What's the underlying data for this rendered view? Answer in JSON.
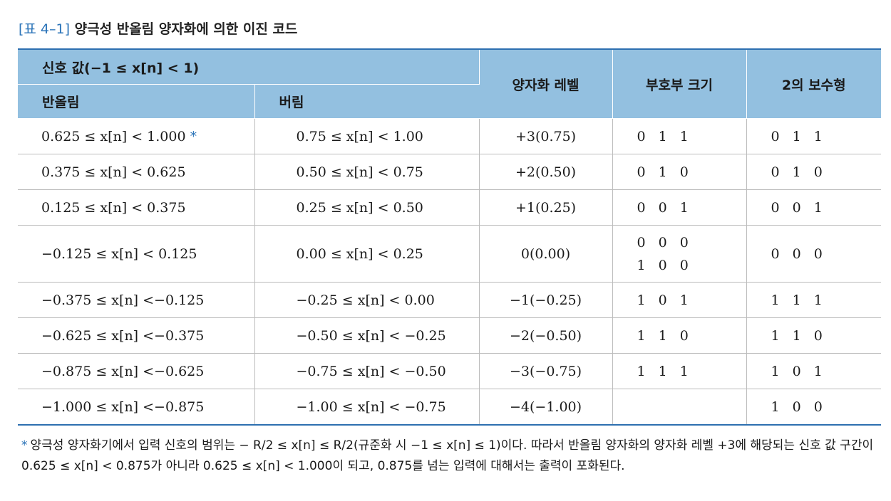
{
  "caption": {
    "tag": "[표 4–1]",
    "title": "양극성 반올림 양자화에 의한 이진 코드"
  },
  "table": {
    "header": {
      "signal_group": "신호 값(−1 ≤ x[n] < 1)",
      "rounding": "반올림",
      "truncation": "버림",
      "quant_level": "양자화 레벨",
      "sign_magnitude": "부호부 크기",
      "twos_complement": "2의 보수형"
    },
    "rows": [
      {
        "rounding": "0.625 ≤ x[n] < 1.000",
        "star": "*",
        "truncation": "0.75 ≤ x[n] < 1.00",
        "level": "+3(0.75)",
        "sign_mag": "0 1 1",
        "sign_mag2": "",
        "twos": "0 1 1"
      },
      {
        "rounding": "0.375 ≤ x[n] < 0.625",
        "star": "",
        "truncation": "0.50 ≤ x[n] < 0.75",
        "level": "+2(0.50)",
        "sign_mag": "0 1 0",
        "sign_mag2": "",
        "twos": "0 1 0"
      },
      {
        "rounding": "0.125 ≤ x[n] < 0.375",
        "star": "",
        "truncation": "0.25 ≤ x[n] < 0.50",
        "level": "+1(0.25)",
        "sign_mag": "0 0 1",
        "sign_mag2": "",
        "twos": "0 0 1"
      },
      {
        "rounding": "−0.125 ≤ x[n] < 0.125",
        "star": "",
        "truncation": "0.00 ≤ x[n] < 0.25",
        "level": "0(0.00)",
        "sign_mag": "0 0 0",
        "sign_mag2": "1 0 0",
        "twos": "0 0 0"
      },
      {
        "rounding": "−0.375 ≤ x[n] <−0.125",
        "star": "",
        "truncation": "−0.25 ≤ x[n] < 0.00",
        "level": "−1(−0.25)",
        "sign_mag": "1 0 1",
        "sign_mag2": "",
        "twos": "1 1 1"
      },
      {
        "rounding": "−0.625 ≤ x[n] <−0.375",
        "star": "",
        "truncation": "−0.50 ≤ x[n] < −0.25",
        "level": "−2(−0.50)",
        "sign_mag": "1 1 0",
        "sign_mag2": "",
        "twos": "1 1 0"
      },
      {
        "rounding": "−0.875 ≤ x[n] <−0.625",
        "star": "",
        "truncation": "−0.75 ≤ x[n] < −0.50",
        "level": "−3(−0.75)",
        "sign_mag": "1 1 1",
        "sign_mag2": "",
        "twos": "1 0 1"
      },
      {
        "rounding": "−1.000 ≤ x[n] <−0.875",
        "star": "",
        "truncation": "−1.00 ≤ x[n] < −0.75",
        "level": "−4(−1.00)",
        "sign_mag": "",
        "sign_mag2": "",
        "twos": "1 0 0"
      }
    ]
  },
  "footnote": {
    "marker": "*",
    "text": "양극성 양자화기에서 입력 신호의 범위는 − R/2 ≤ x[n] ≤ R/2(규준화 시 −1 ≤ x[n] ≤ 1)이다. 따라서 반올림 양자화의 양자화 레벨 +3에 해당되는 신호 값 구간이 0.625 ≤ x[n] < 0.875가 아니라 0.625 ≤ x[n] < 1.000이 되고, 0.875를 넘는 입력에 대해서는 출력이 포화된다."
  }
}
